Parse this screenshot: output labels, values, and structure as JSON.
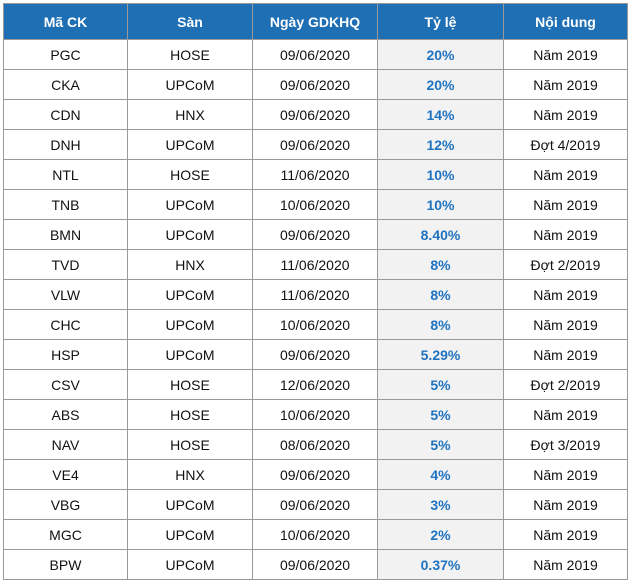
{
  "table": {
    "headers": [
      "Mã CK",
      "Sàn",
      "Ngày GDKHQ",
      "Tỷ lệ",
      "Nội dung"
    ],
    "rows": [
      [
        "PGC",
        "HOSE",
        "09/06/2020",
        "20%",
        "Năm 2019"
      ],
      [
        "CKA",
        "UPCoM",
        "09/06/2020",
        "20%",
        "Năm 2019"
      ],
      [
        "CDN",
        "HNX",
        "09/06/2020",
        "14%",
        "Năm 2019"
      ],
      [
        "DNH",
        "UPCoM",
        "09/06/2020",
        "12%",
        "Đợt 4/2019"
      ],
      [
        "NTL",
        "HOSE",
        "11/06/2020",
        "10%",
        "Năm 2019"
      ],
      [
        "TNB",
        "UPCoM",
        "10/06/2020",
        "10%",
        "Năm 2019"
      ],
      [
        "BMN",
        "UPCoM",
        "09/06/2020",
        "8.40%",
        "Năm 2019"
      ],
      [
        "TVD",
        "HNX",
        "11/06/2020",
        "8%",
        "Đợt 2/2019"
      ],
      [
        "VLW",
        "UPCoM",
        "11/06/2020",
        "8%",
        "Năm 2019"
      ],
      [
        "CHC",
        "UPCoM",
        "10/06/2020",
        "8%",
        "Năm 2019"
      ],
      [
        "HSP",
        "UPCoM",
        "09/06/2020",
        "5.29%",
        "Năm 2019"
      ],
      [
        "CSV",
        "HOSE",
        "12/06/2020",
        "5%",
        "Đợt 2/2019"
      ],
      [
        "ABS",
        "HOSE",
        "10/06/2020",
        "5%",
        "Năm 2019"
      ],
      [
        "NAV",
        "HOSE",
        "08/06/2020",
        "5%",
        "Đợt 3/2019"
      ],
      [
        "VE4",
        "HNX",
        "09/06/2020",
        "4%",
        "Năm 2019"
      ],
      [
        "VBG",
        "UPCoM",
        "09/06/2020",
        "3%",
        "Năm 2019"
      ],
      [
        "MGC",
        "UPCoM",
        "10/06/2020",
        "2%",
        "Năm 2019"
      ],
      [
        "BPW",
        "UPCoM",
        "09/06/2020",
        "0.37%",
        "Năm 2019"
      ]
    ]
  },
  "colors": {
    "header_bg": "#1f6fb5",
    "header_text": "#ffffff",
    "rate_text": "#1f73c0",
    "rate_bg": "#f2f2f2",
    "border": "#9a9a9a"
  }
}
